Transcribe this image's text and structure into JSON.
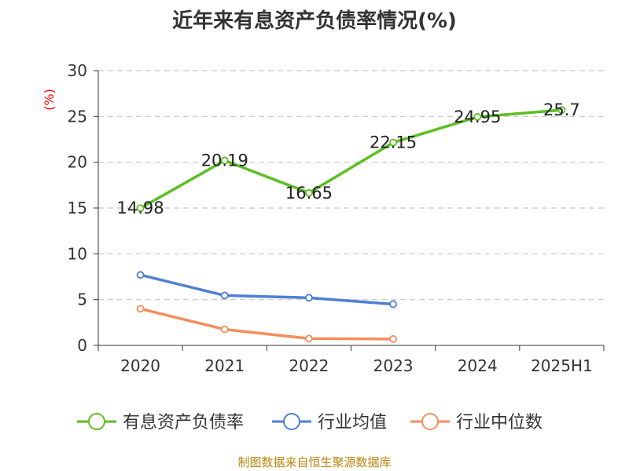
{
  "title": "近年来有息资产负债率情况(%)",
  "footer": "制图数据来自恒生聚源数据库",
  "chart_data": {
    "type": "line",
    "title": "近年来有息资产负债率情况(%)",
    "ylabel": "(%)",
    "xlabel": "",
    "categories": [
      "2020",
      "2021",
      "2022",
      "2023",
      "2024",
      "2025H1"
    ],
    "ylim": [
      0,
      30
    ],
    "yticks": [
      0,
      5,
      10,
      15,
      20,
      25,
      30
    ],
    "grid": true,
    "legend_position": "bottom",
    "series": [
      {
        "name": "有息资产负债率",
        "color": "#5bbf21",
        "values": [
          14.98,
          20.19,
          16.65,
          22.15,
          24.95,
          25.7
        ],
        "labels": [
          "14.98",
          "20.19",
          "16.65",
          "22.15",
          "24.95",
          "25.7"
        ]
      },
      {
        "name": "行业均值",
        "color": "#4e7fd4",
        "values": [
          7.7,
          5.45,
          5.2,
          4.5,
          null,
          null
        ]
      },
      {
        "name": "行业中位数",
        "color": "#f58e5a",
        "values": [
          4.0,
          1.75,
          0.75,
          0.7,
          null,
          null
        ]
      }
    ]
  }
}
